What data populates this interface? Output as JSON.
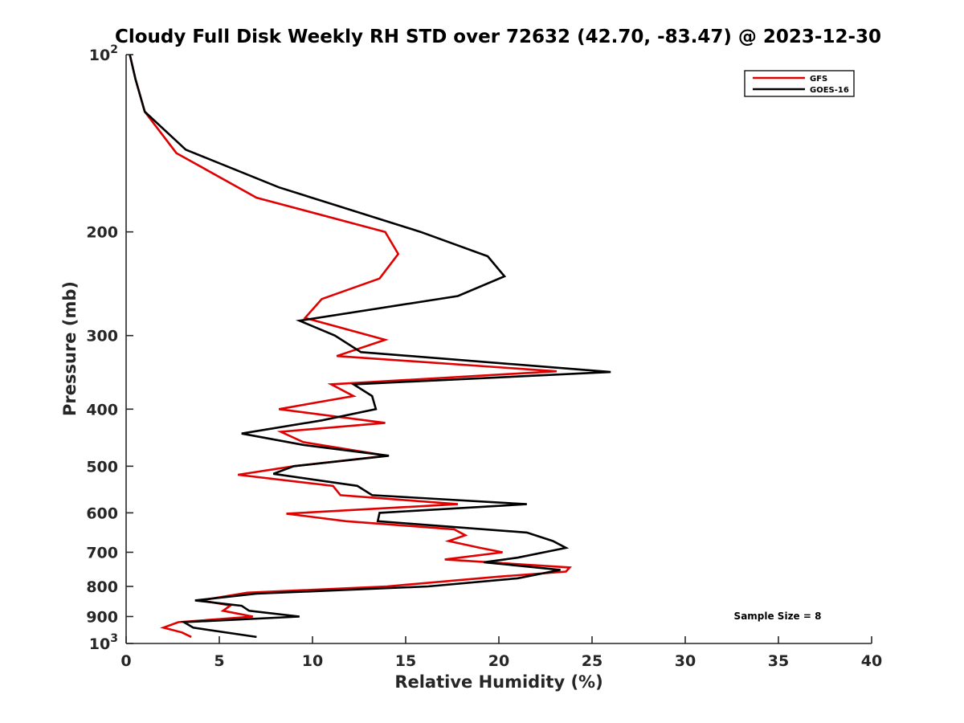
{
  "chart_data": {
    "type": "line",
    "title": "Cloudy Full Disk Weekly RH STD over 72632 (42.70, -83.47) @ 2023-12-30",
    "xlabel": "Relative Humidity (%)",
    "ylabel": "Pressure (mb)",
    "xlim": [
      0,
      40
    ],
    "ylim": [
      100,
      1000
    ],
    "y_scale": "log",
    "y_reversed": true,
    "x_ticks": [
      "0",
      "5",
      "10",
      "15",
      "20",
      "25",
      "30",
      "35",
      "40"
    ],
    "y_ticks": [
      {
        "value": 100,
        "base": "10",
        "exp": "2"
      },
      {
        "value": 200,
        "label": "200"
      },
      {
        "value": 300,
        "label": "300"
      },
      {
        "value": 400,
        "label": "400"
      },
      {
        "value": 500,
        "label": "500"
      },
      {
        "value": 600,
        "label": "600"
      },
      {
        "value": 700,
        "label": "700"
      },
      {
        "value": 800,
        "label": "800"
      },
      {
        "value": 900,
        "label": "900"
      },
      {
        "value": 1000,
        "base": "10",
        "exp": "3"
      }
    ],
    "grid": false,
    "legend_position": "top-right",
    "annotation": "Sample Size = 8",
    "series": [
      {
        "name": "GFS",
        "color": "#e00000",
        "points": [
          [
            0.2,
            100
          ],
          [
            0.5,
            110
          ],
          [
            1.0,
            125
          ],
          [
            2.7,
            147
          ],
          [
            7.0,
            175
          ],
          [
            13.9,
            200
          ],
          [
            14.6,
            218
          ],
          [
            13.6,
            240
          ],
          [
            10.5,
            260
          ],
          [
            9.6,
            280
          ],
          [
            13.9,
            305
          ],
          [
            11.3,
            325
          ],
          [
            23.1,
            345
          ],
          [
            11.0,
            363
          ],
          [
            12.2,
            380
          ],
          [
            8.2,
            400
          ],
          [
            13.9,
            422
          ],
          [
            8.3,
            437
          ],
          [
            9.5,
            455
          ],
          [
            14.0,
            480
          ],
          [
            9.0,
            500
          ],
          [
            6.0,
            517
          ],
          [
            11.1,
            540
          ],
          [
            11.5,
            560
          ],
          [
            17.8,
            580
          ],
          [
            8.6,
            602
          ],
          [
            11.8,
            620
          ],
          [
            17.6,
            640
          ],
          [
            18.2,
            655
          ],
          [
            17.3,
            670
          ],
          [
            19.0,
            688
          ],
          [
            20.2,
            700
          ],
          [
            17.1,
            720
          ],
          [
            23.8,
            743
          ],
          [
            23.6,
            755
          ],
          [
            20.0,
            770
          ],
          [
            14.0,
            800
          ],
          [
            6.5,
            820
          ],
          [
            4.0,
            845
          ],
          [
            5.6,
            862
          ],
          [
            5.2,
            880
          ],
          [
            6.8,
            900
          ],
          [
            2.8,
            920
          ],
          [
            2.0,
            940
          ],
          [
            3.0,
            958
          ],
          [
            3.5,
            975
          ]
        ]
      },
      {
        "name": "GOES-16",
        "color": "#000000",
        "points": [
          [
            0.2,
            100
          ],
          [
            0.5,
            110
          ],
          [
            1.0,
            125
          ],
          [
            3.2,
            145
          ],
          [
            8.2,
            168
          ],
          [
            15.8,
            200
          ],
          [
            19.4,
            220
          ],
          [
            20.3,
            238
          ],
          [
            17.8,
            257
          ],
          [
            9.3,
            283
          ],
          [
            11.2,
            300
          ],
          [
            12.6,
            320
          ],
          [
            26.0,
            346
          ],
          [
            12.2,
            363
          ],
          [
            13.2,
            380
          ],
          [
            13.4,
            400
          ],
          [
            10.5,
            418
          ],
          [
            6.2,
            440
          ],
          [
            9.5,
            460
          ],
          [
            14.1,
            480
          ],
          [
            9.0,
            500
          ],
          [
            7.9,
            515
          ],
          [
            12.4,
            540
          ],
          [
            13.2,
            560
          ],
          [
            21.5,
            580
          ],
          [
            13.6,
            600
          ],
          [
            13.5,
            620
          ],
          [
            21.5,
            648
          ],
          [
            22.9,
            670
          ],
          [
            23.6,
            688
          ],
          [
            21.0,
            715
          ],
          [
            19.2,
            728
          ],
          [
            23.3,
            750
          ],
          [
            21.0,
            775
          ],
          [
            16.2,
            800
          ],
          [
            7.0,
            823
          ],
          [
            3.7,
            845
          ],
          [
            6.2,
            863
          ],
          [
            6.6,
            880
          ],
          [
            9.3,
            900
          ],
          [
            3.1,
            920
          ],
          [
            3.6,
            940
          ],
          [
            7.0,
            975
          ]
        ]
      }
    ]
  }
}
